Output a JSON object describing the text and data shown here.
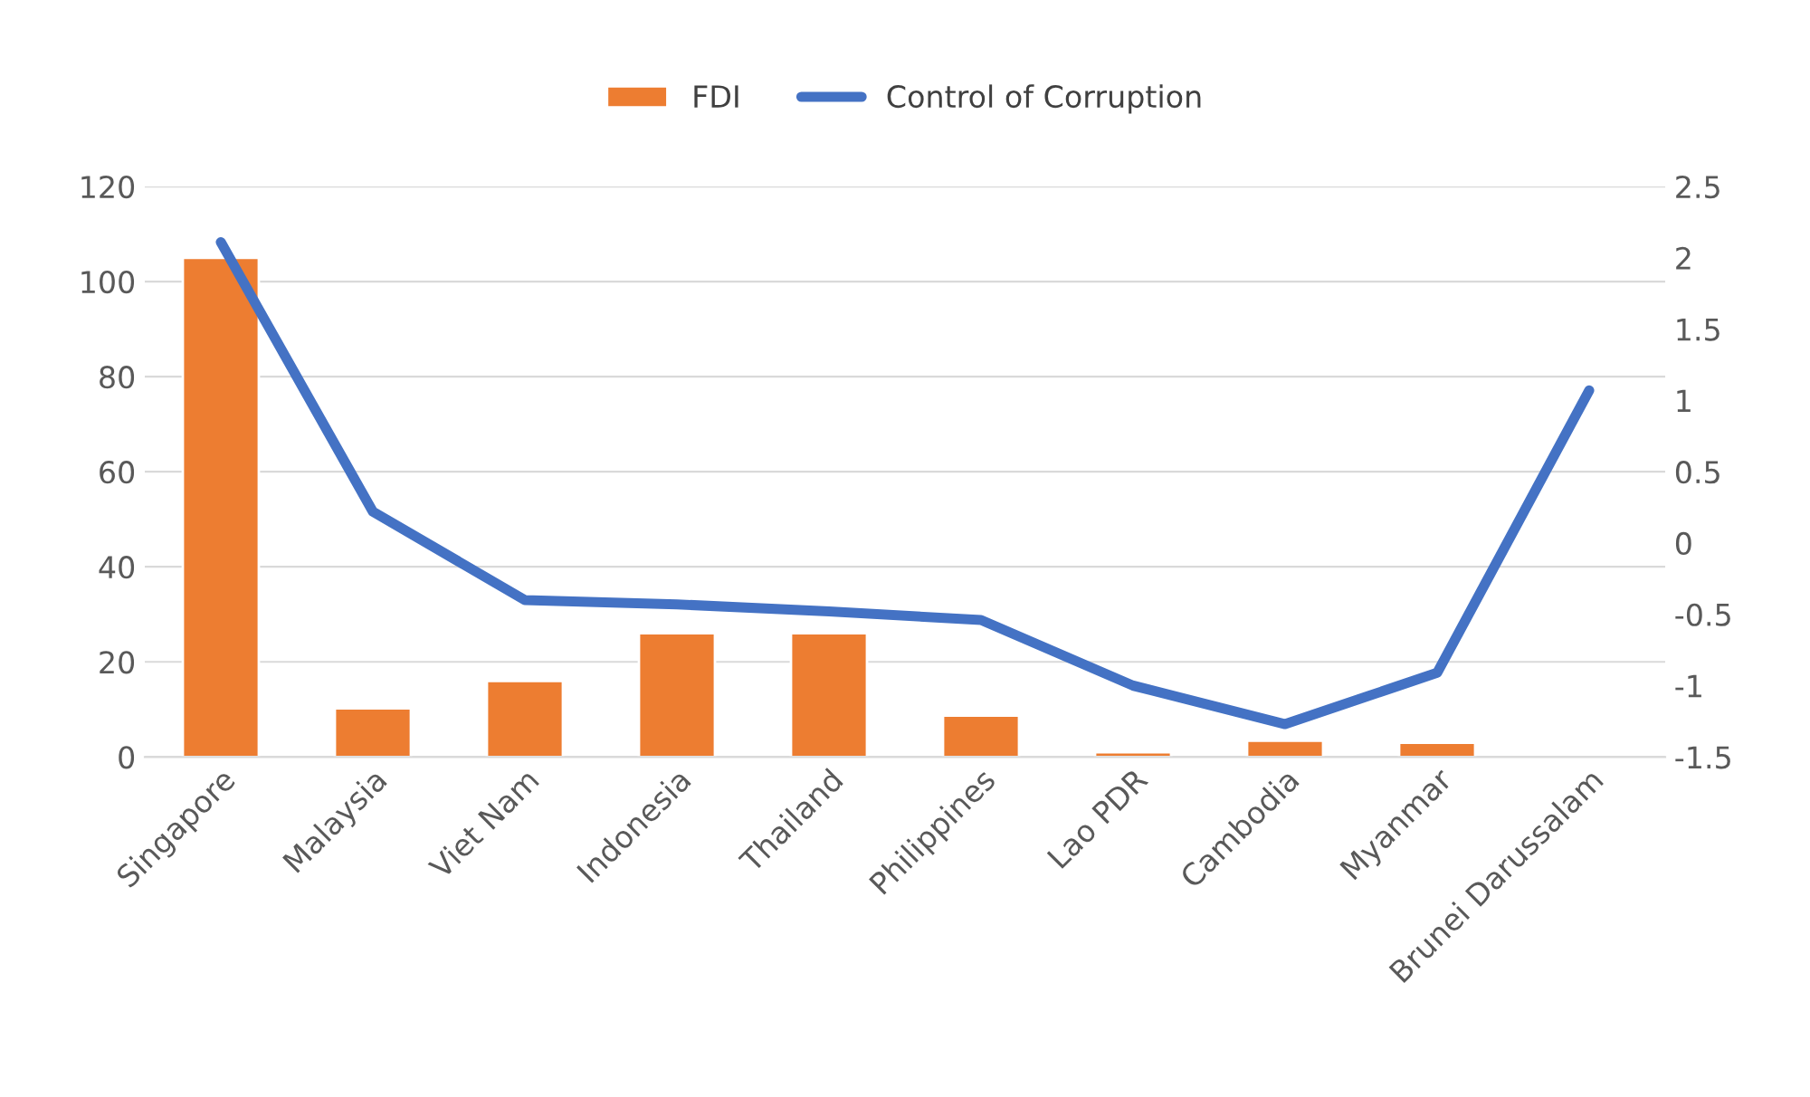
{
  "chart_data": {
    "type": "bar",
    "categories": [
      "Singapore",
      "Malaysia",
      "Viet Nam",
      "Indonesia",
      "Thailand",
      "Philippines",
      "Lao PDR",
      "Cambodia",
      "Myanmar",
      "Brunei Darussalam"
    ],
    "series": [
      {
        "name": "FDI",
        "color": "#ed7d31",
        "values": [
          105,
          10.2,
          16,
          26,
          26,
          8.7,
          1,
          3.4,
          3,
          null
        ]
      },
      {
        "name": "Control of Corruption",
        "type": "line",
        "axis": "y2",
        "color": "#4472c4",
        "values": [
          2.11,
          0.22,
          -0.4,
          -0.43,
          -0.48,
          -0.54,
          -1.0,
          -1.27,
          -0.91,
          1.07
        ]
      }
    ],
    "ylim": [
      0,
      120
    ],
    "yticks": [
      0,
      20,
      40,
      60,
      80,
      100,
      120
    ],
    "y2lim": [
      -1.5,
      2.5
    ],
    "y2ticks": [
      {
        "value": -1.5,
        "label": "-1.5"
      },
      {
        "value": -1,
        "label": "-1"
      },
      {
        "value": -0.5,
        "label": "-0.5"
      },
      0,
      0.5,
      1,
      1.5,
      2,
      2.5
    ],
    "grid": "y",
    "legend": "top",
    "marker": "none",
    "line_style": "solid"
  }
}
